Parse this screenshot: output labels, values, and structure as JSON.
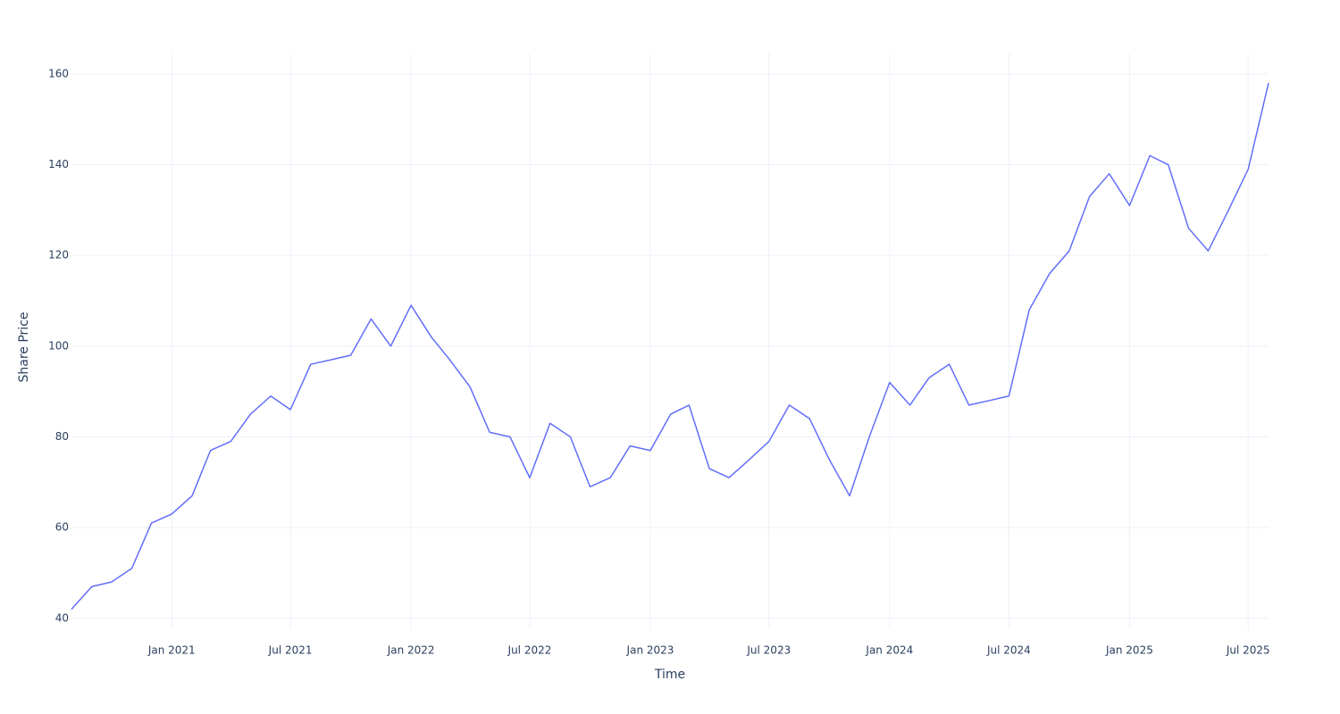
{
  "chart_data": {
    "type": "line",
    "x_label": "Time",
    "y_label": "Share Price",
    "x": [
      "2020-08",
      "2020-09",
      "2020-10",
      "2020-11",
      "2020-12",
      "2021-01",
      "2021-02",
      "2021-03",
      "2021-04",
      "2021-05",
      "2021-06",
      "2021-07",
      "2021-08",
      "2021-09",
      "2021-10",
      "2021-11",
      "2021-12",
      "2022-01",
      "2022-02",
      "2022-03",
      "2022-04",
      "2022-05",
      "2022-06",
      "2022-07",
      "2022-08",
      "2022-09",
      "2022-10",
      "2022-11",
      "2022-12",
      "2023-01",
      "2023-02",
      "2023-03",
      "2023-04",
      "2023-05",
      "2023-06",
      "2023-07",
      "2023-08",
      "2023-09",
      "2023-10",
      "2023-11",
      "2023-12",
      "2024-01",
      "2024-02",
      "2024-03",
      "2024-04",
      "2024-05",
      "2024-06",
      "2024-07",
      "2024-08",
      "2024-09",
      "2024-10",
      "2024-11",
      "2024-12",
      "2025-01",
      "2025-02",
      "2025-03",
      "2025-04",
      "2025-05",
      "2025-06",
      "2025-07",
      "2025-08"
    ],
    "values": [
      42,
      47,
      48,
      51,
      61,
      63,
      67,
      77,
      79,
      85,
      89,
      86,
      96,
      97,
      98,
      106,
      100,
      109,
      102,
      97,
      91,
      81,
      80,
      71,
      83,
      80,
      69,
      71,
      78,
      77,
      85,
      87,
      73,
      71,
      75,
      79,
      87,
      84,
      75,
      67,
      80,
      92,
      87,
      93,
      96,
      87,
      88,
      89,
      108,
      116,
      121,
      133,
      138,
      131,
      142,
      140,
      126,
      121,
      130,
      139,
      158
    ],
    "color": "#636efa",
    "xlim": [
      "2020-08",
      "2025-08"
    ],
    "xticks": [
      {
        "value": "2021-01",
        "label": "Jan 2021"
      },
      {
        "value": "2021-07",
        "label": "Jul 2021"
      },
      {
        "value": "2022-01",
        "label": "Jan 2022"
      },
      {
        "value": "2022-07",
        "label": "Jul 2022"
      },
      {
        "value": "2023-01",
        "label": "Jan 2023"
      },
      {
        "value": "2023-07",
        "label": "Jul 2023"
      },
      {
        "value": "2024-01",
        "label": "Jan 2024"
      },
      {
        "value": "2024-07",
        "label": "Jul 2024"
      },
      {
        "value": "2025-01",
        "label": "Jan 2025"
      },
      {
        "value": "2025-07",
        "label": "Jul 2025"
      }
    ],
    "ylim": [
      37.6,
      164.5
    ],
    "yticks": [
      40,
      60,
      80,
      100,
      120,
      140,
      160
    ],
    "grid": true
  }
}
